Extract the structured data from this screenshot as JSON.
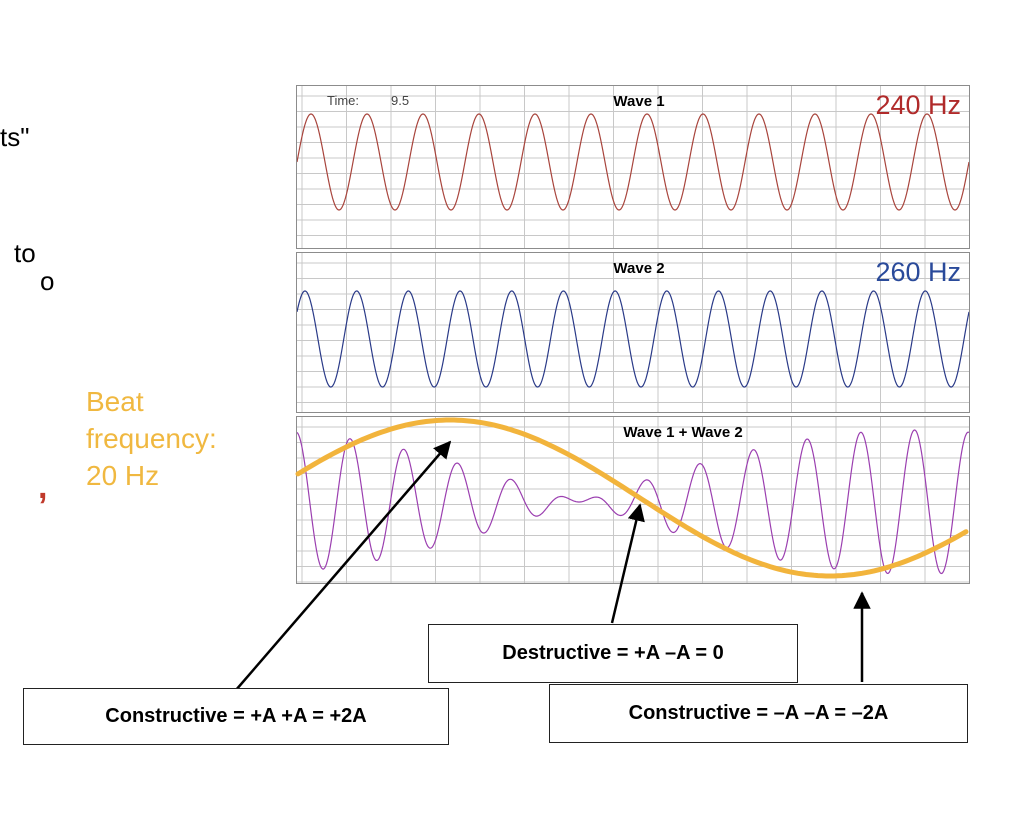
{
  "edge_text": {
    "line1": "ts\"",
    "line2": "to",
    "line3": "o",
    "line4": ","
  },
  "beat_label": {
    "line1": "Beat",
    "line2": "frequency:",
    "line3": "20 Hz"
  },
  "colors": {
    "wave1": "#a8443c",
    "wave2": "#2a3a88",
    "sum": "#9b3fb0",
    "envelope": "#f2b43c",
    "grid": "#c8c8c8",
    "wave1_label": "#b02a2a",
    "wave2_label": "#2a4a9a"
  },
  "panels": {
    "wave1": {
      "time_label": "Time:",
      "time_value": "9.5",
      "title": "Wave 1",
      "frequency": "240 Hz",
      "freq_hz": 240
    },
    "wave2": {
      "title": "Wave 2",
      "frequency": "260 Hz",
      "freq_hz": 260
    },
    "sum": {
      "title": "Wave 1 + Wave 2"
    }
  },
  "callouts": {
    "constructive_pos": "Constructive = +A +A = +2A",
    "destructive": "Destructive = +A –A = 0",
    "constructive_neg": "Constructive = –A –A = –2A"
  }
}
